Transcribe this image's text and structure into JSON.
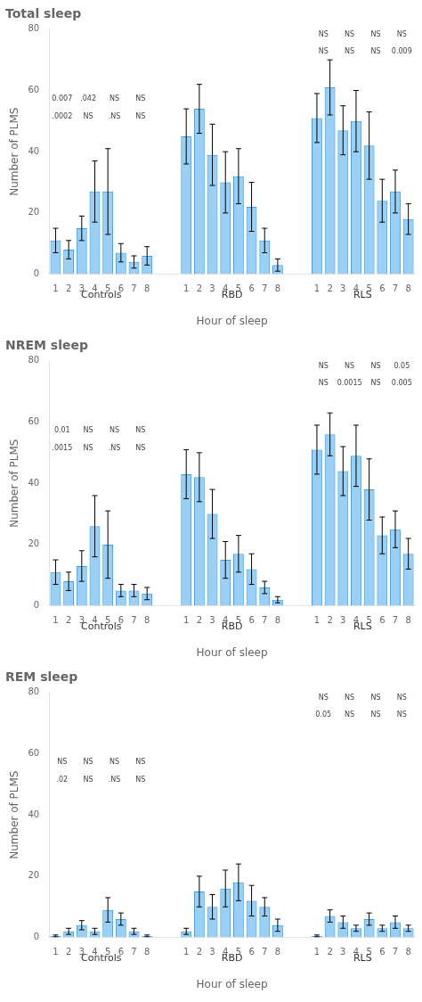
{
  "chart_data": [
    {
      "type": "bar",
      "title": "Total sleep",
      "x_label": "Hour of sleep",
      "y_label": "Number of PLMS",
      "categories": [
        1,
        2,
        3,
        4,
        5,
        6,
        7,
        8
      ],
      "groups": [
        {
          "name": "Controls",
          "values": [
            11,
            8,
            15,
            27,
            27,
            7,
            4,
            6
          ],
          "errors": [
            4,
            3,
            4,
            10,
            14,
            3,
            2,
            3
          ]
        },
        {
          "name": "RBD",
          "values": [
            45,
            54,
            39,
            30,
            32,
            22,
            11,
            3
          ],
          "errors": [
            9,
            8,
            10,
            10,
            9,
            8,
            4,
            2
          ]
        },
        {
          "name": "RLS",
          "values": [
            51,
            61,
            47,
            50,
            42,
            24,
            27,
            18
          ],
          "errors": [
            8,
            9,
            8,
            10,
            11,
            7,
            7,
            5
          ]
        }
      ],
      "annotations": [
        {
          "group": "Controls",
          "top": [
            "0.007",
            ".042",
            "NS",
            "NS"
          ],
          "bottom": [
            ".0002",
            "NS",
            ".NS",
            "NS"
          ]
        },
        {
          "group": "RLS",
          "top": [
            "NS",
            "NS",
            "NS",
            "NS"
          ],
          "bottom": [
            "NS",
            "NS",
            "NS",
            "0.009"
          ]
        }
      ],
      "ylim": [
        0,
        80
      ],
      "yticks": [
        0,
        20,
        40,
        60,
        80
      ],
      "grid": false
    },
    {
      "type": "bar",
      "title": "NREM sleep",
      "x_label": "Hour of sleep",
      "y_label": "Number of PLMS",
      "categories": [
        1,
        2,
        3,
        4,
        5,
        6,
        7,
        8
      ],
      "groups": [
        {
          "name": "Controls",
          "values": [
            11,
            8,
            13,
            26,
            20,
            5,
            5,
            4
          ],
          "errors": [
            4,
            3,
            5,
            10,
            11,
            2,
            2,
            2
          ]
        },
        {
          "name": "RBD",
          "values": [
            43,
            42,
            30,
            15,
            17,
            12,
            6,
            2
          ],
          "errors": [
            8,
            8,
            8,
            6,
            6,
            5,
            2,
            1
          ]
        },
        {
          "name": "RLS",
          "values": [
            51,
            56,
            44,
            49,
            38,
            23,
            25,
            17
          ],
          "errors": [
            8,
            7,
            8,
            10,
            10,
            6,
            6,
            5
          ]
        }
      ],
      "annotations": [
        {
          "group": "Controls",
          "top": [
            "0.01",
            "NS",
            "NS",
            "NS"
          ],
          "bottom": [
            ".0015",
            "NS",
            ".NS",
            "NS"
          ]
        },
        {
          "group": "RLS",
          "top": [
            "NS",
            "NS",
            "NS",
            "0.05"
          ],
          "bottom": [
            "NS",
            "0.0015",
            "NS",
            "0.005"
          ]
        }
      ],
      "ylim": [
        0,
        80
      ],
      "yticks": [
        0,
        20,
        40,
        60,
        80
      ],
      "grid": false
    },
    {
      "type": "bar",
      "title": "REM sleep",
      "x_label": "Hour of sleep",
      "y_label": "Number of PLMS",
      "categories": [
        1,
        2,
        3,
        4,
        5,
        6,
        7,
        8
      ],
      "groups": [
        {
          "name": "Controls",
          "values": [
            0.5,
            2,
            4,
            2,
            9,
            6,
            2,
            0.5
          ],
          "errors": [
            0.3,
            1,
            1.5,
            1,
            4,
            2,
            1,
            0.3
          ]
        },
        {
          "name": "RBD",
          "values": [
            2,
            15,
            10,
            16,
            18,
            12,
            10,
            4
          ],
          "errors": [
            1,
            5,
            4,
            6,
            6,
            5,
            3,
            2
          ]
        },
        {
          "name": "RLS",
          "values": [
            0.5,
            7,
            5,
            3,
            6,
            3,
            5,
            3
          ],
          "errors": [
            0.3,
            2,
            2,
            1,
            2,
            1,
            2,
            1
          ]
        }
      ],
      "annotations": [
        {
          "group": "Controls",
          "top": [
            "NS",
            "NS",
            "NS",
            "NS"
          ],
          "bottom": [
            ".02",
            "NS",
            ".NS",
            "NS"
          ]
        },
        {
          "group": "RLS",
          "top": [
            "NS",
            "NS",
            "NS",
            "NS"
          ],
          "bottom": [
            "0.05",
            "NS",
            "NS",
            "NS"
          ]
        }
      ],
      "ylim": [
        0,
        80
      ],
      "yticks": [
        0,
        20,
        40,
        60,
        80
      ],
      "grid": false
    }
  ]
}
